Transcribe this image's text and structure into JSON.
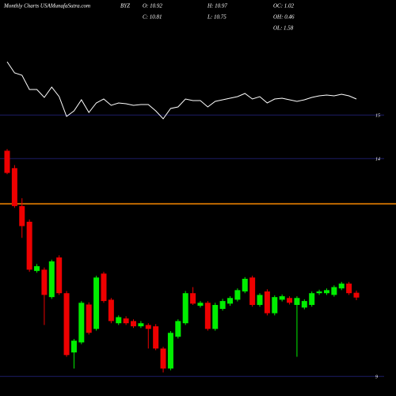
{
  "chart_data": {
    "type": "candlestick",
    "title": "Monthly Charts USAMunafaSutra.com",
    "symbol": "BYZ",
    "stats": [
      {
        "label": "O: 10.92"
      },
      {
        "label": "H: 10.97"
      },
      {
        "label": "OC: 1.02"
      },
      {
        "label": "C: 10.81"
      },
      {
        "label": "L: 10.75"
      },
      {
        "label": "OH: 0.46"
      },
      {
        "label": "OL: 1.58"
      }
    ],
    "open": [
      14.18,
      13.78,
      12.91,
      12.55,
      11.42,
      11.45,
      10.82,
      11.73,
      10.91,
      9.55,
      9.78,
      10.65,
      10.09,
      11.36,
      10.76,
      10.22,
      10.33,
      10.27,
      10.15,
      10.18,
      10.15,
      9.64,
      9.18,
      9.91,
      10.22,
      10.91,
      10.62,
      10.69,
      10.09,
      10.55,
      10.67,
      10.76,
      10.95,
      11.27,
      10.64,
      10.95,
      10.45,
      10.76,
      10.8,
      10.64,
      10.58,
      10.64,
      10.91,
      10.91,
      10.87,
      11.02,
      11.13,
      10.92
    ],
    "high": [
      14.22,
      13.85,
      13.09,
      12.6,
      11.58,
      11.5,
      11.68,
      11.78,
      10.96,
      9.86,
      10.73,
      10.7,
      11.31,
      11.4,
      10.8,
      10.4,
      10.38,
      10.31,
      10.27,
      10.22,
      10.2,
      9.68,
      10.04,
      10.31,
      10.96,
      11.05,
      10.73,
      10.73,
      10.69,
      10.78,
      10.84,
      11.02,
      11.28,
      11.31,
      10.91,
      11.0,
      10.86,
      10.88,
      10.84,
      10.84,
      10.77,
      10.95,
      10.99,
      11.02,
      11.09,
      11.17,
      11.17,
      10.97
    ],
    "low": [
      13.64,
      12.87,
      12.18,
      11.4,
      11.38,
      10.18,
      10.78,
      10.87,
      9.45,
      9.18,
      9.74,
      9.96,
      10.05,
      10.69,
      10.22,
      10.18,
      10.18,
      10.11,
      10.11,
      9.64,
      9.6,
      9.09,
      9.14,
      9.87,
      10.18,
      10.64,
      10.58,
      10.05,
      10.05,
      10.51,
      10.62,
      10.72,
      10.91,
      10.6,
      10.6,
      10.4,
      10.4,
      10.72,
      10.65,
      9.45,
      10.54,
      10.6,
      10.87,
      10.87,
      10.83,
      10.98,
      10.87,
      10.75
    ],
    "close": [
      13.67,
      12.91,
      12.45,
      11.45,
      11.53,
      10.87,
      11.64,
      10.91,
      9.49,
      9.82,
      10.69,
      10.0,
      11.27,
      10.73,
      10.27,
      10.36,
      10.22,
      10.15,
      10.22,
      10.09,
      9.64,
      9.18,
      10.0,
      10.27,
      10.91,
      10.67,
      10.69,
      10.09,
      10.64,
      10.73,
      10.8,
      10.98,
      11.24,
      10.64,
      10.87,
      10.45,
      10.82,
      10.84,
      10.69,
      10.8,
      10.73,
      10.91,
      10.95,
      10.98,
      11.05,
      11.13,
      10.91,
      10.81
    ],
    "up_color": "#00ee00",
    "down_color": "#ee0000",
    "ylim": [
      8.55,
      17.64
    ],
    "yticks": [
      15,
      14,
      9
    ],
    "grid_color": "#1c1c66",
    "support_line": 12.96,
    "support_color": "#ff8c00",
    "indicator": {
      "values": [
        82,
        68,
        65,
        47,
        47,
        37,
        50,
        38,
        13,
        20,
        34,
        18,
        30,
        35,
        27,
        30,
        29,
        27,
        28,
        28,
        20,
        10,
        23,
        25,
        35,
        33,
        33,
        25,
        32,
        34,
        36,
        38,
        42,
        35,
        38,
        30,
        35,
        36,
        34,
        32,
        34,
        37,
        39,
        40,
        39,
        41,
        39,
        35
      ],
      "ylim": [
        0,
        100
      ],
      "color": "#ffffff"
    }
  }
}
